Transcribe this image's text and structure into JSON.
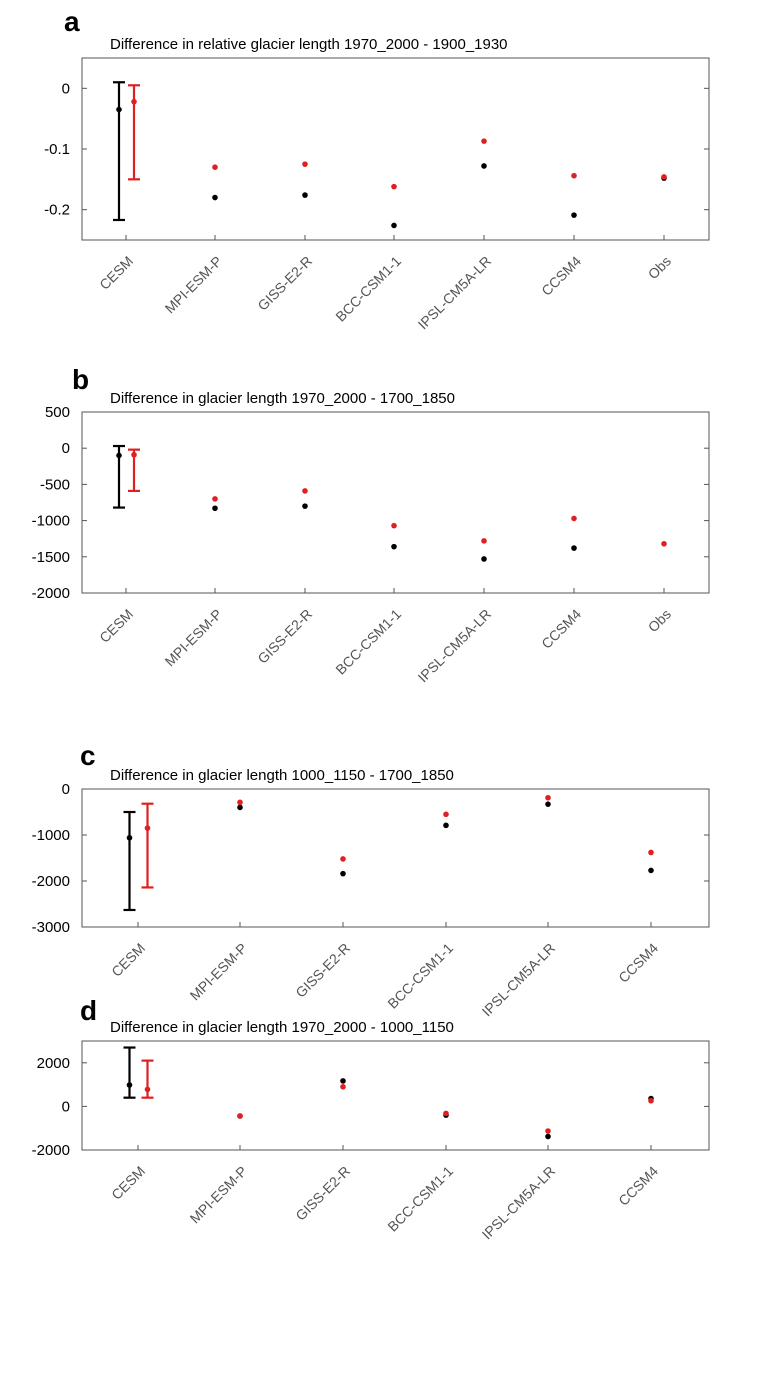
{
  "chart_data": [
    {
      "panel_label": "a",
      "type": "scatter",
      "title": "Difference in relative glacier length 1970_2000 - 1900_1930",
      "categories": [
        "CESM",
        "MPI-ESM-P",
        "GISS-E2-R",
        "BCC-CSM1-1",
        "IPSL-CM5A-LR",
        "CCSM4",
        "Obs"
      ],
      "ylim": [
        -0.25,
        0.05
      ],
      "yticks": [
        0,
        -0.1,
        -0.2
      ],
      "ytick_labels": [
        "0",
        "-0.1",
        "-0.2"
      ],
      "series": [
        {
          "color": "#000000",
          "values": [
            -0.035,
            -0.18,
            -0.176,
            -0.226,
            -0.128,
            -0.209,
            -0.148
          ],
          "error_bar": {
            "category": "CESM",
            "low": -0.217,
            "high": 0.01
          }
        },
        {
          "color": "#e02020",
          "values": [
            -0.022,
            -0.13,
            -0.125,
            -0.162,
            -0.087,
            -0.144,
            -0.146
          ],
          "error_bar": {
            "category": "CESM",
            "low": -0.15,
            "high": 0.005
          }
        }
      ],
      "grid": false
    },
    {
      "panel_label": "b",
      "type": "scatter",
      "title": "Difference in glacier length 1970_2000 - 1700_1850",
      "categories": [
        "CESM",
        "MPI-ESM-P",
        "GISS-E2-R",
        "BCC-CSM1-1",
        "IPSL-CM5A-LR",
        "CCSM4",
        "Obs"
      ],
      "ylim": [
        -2000,
        500
      ],
      "yticks": [
        500,
        0,
        -500,
        -1000,
        -1500,
        -2000
      ],
      "ytick_labels": [
        "500",
        "0",
        "-500",
        "-1000",
        "-1500",
        "-2000"
      ],
      "series": [
        {
          "color": "#000000",
          "values": [
            -100,
            -830,
            -800,
            -1360,
            -1530,
            -1380,
            null
          ],
          "error_bar": {
            "category": "CESM",
            "low": -820,
            "high": 30
          }
        },
        {
          "color": "#e02020",
          "values": [
            -90,
            -700,
            -590,
            -1070,
            -1280,
            -970,
            -1320
          ],
          "error_bar": {
            "category": "CESM",
            "low": -590,
            "high": -20
          }
        }
      ],
      "grid": false
    },
    {
      "panel_label": "c",
      "type": "scatter",
      "title": "Difference in glacier length 1000_1150 - 1700_1850",
      "categories": [
        "CESM",
        "MPI-ESM-P",
        "GISS-E2-R",
        "BCC-CSM1-1",
        "IPSL-CM5A-LR",
        "CCSM4"
      ],
      "ylim": [
        -3000,
        0
      ],
      "yticks": [
        0,
        -1000,
        -2000,
        -3000
      ],
      "ytick_labels": [
        "0",
        "-1000",
        "-2000",
        "-3000"
      ],
      "series": [
        {
          "color": "#000000",
          "values": [
            -1060,
            -400,
            -1840,
            -790,
            -330,
            -1770
          ],
          "error_bar": {
            "category": "CESM",
            "low": -2630,
            "high": -500
          }
        },
        {
          "color": "#e02020",
          "values": [
            -850,
            -290,
            -1520,
            -550,
            -190,
            -1380
          ],
          "error_bar": {
            "category": "CESM",
            "low": -2140,
            "high": -320
          }
        }
      ],
      "grid": false
    },
    {
      "panel_label": "d",
      "type": "scatter",
      "title": "Difference in glacier length 1970_2000 - 1000_1150",
      "categories": [
        "CESM",
        "MPI-ESM-P",
        "GISS-E2-R",
        "BCC-CSM1-1",
        "IPSL-CM5A-LR",
        "CCSM4"
      ],
      "ylim": [
        -2000,
        3000
      ],
      "yticks": [
        2000,
        0,
        -2000
      ],
      "ytick_labels": [
        "2000",
        "0",
        "-2000"
      ],
      "series": [
        {
          "color": "#000000",
          "values": [
            980,
            -440,
            1170,
            -400,
            -1380,
            360
          ],
          "error_bar": {
            "category": "CESM",
            "low": 400,
            "high": 2700
          }
        },
        {
          "color": "#e02020",
          "values": [
            780,
            -440,
            900,
            -320,
            -1130,
            260
          ],
          "error_bar": {
            "category": "CESM",
            "low": 400,
            "high": 2100
          }
        }
      ],
      "grid": false
    }
  ]
}
